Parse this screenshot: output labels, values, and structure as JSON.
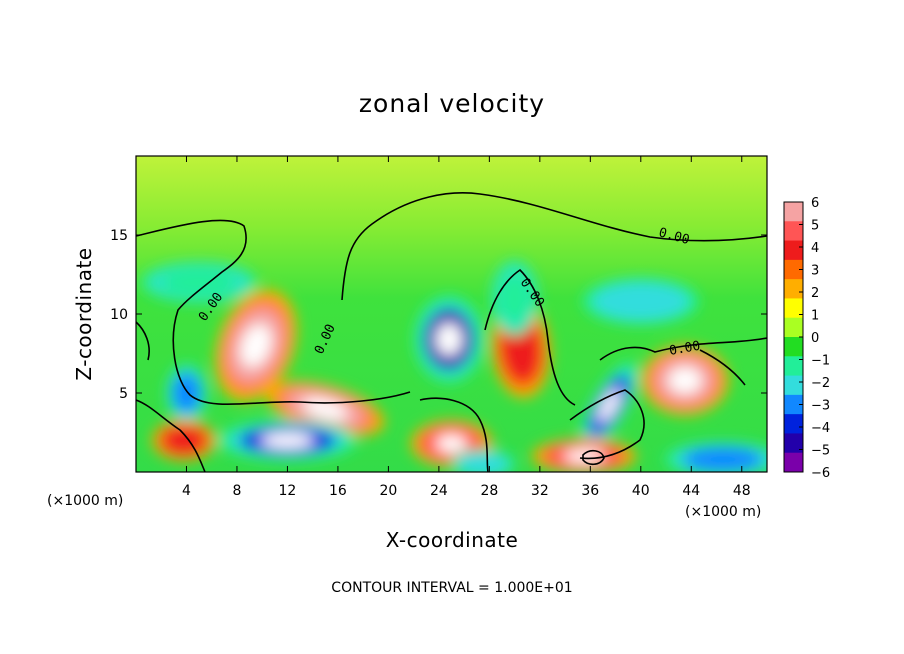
{
  "chart_data": {
    "type": "heatmap",
    "title": "zonal velocity",
    "xlabel": "X-coordinate",
    "ylabel": "Z-coordinate",
    "x_unit": "(×1000 m)",
    "xlim": [
      0,
      50
    ],
    "ylim": [
      0,
      20
    ],
    "xticks": [
      4,
      8,
      12,
      16,
      20,
      24,
      28,
      32,
      36,
      40,
      44,
      48
    ],
    "yticks": [
      5,
      10,
      15
    ],
    "footer": "CONTOUR INTERVAL = 1.000E+01",
    "contour_label": "0.00",
    "colorbar": {
      "ticks": [
        6,
        5,
        4,
        3,
        2,
        1,
        0,
        -1,
        -2,
        -3,
        -4,
        -5,
        -6
      ],
      "colors": [
        "#f5a3a3",
        "#ff5555",
        "#ee1c1c",
        "#ff6a00",
        "#ffae00",
        "#ffff00",
        "#aaff22",
        "#22dd22",
        "#22ee99",
        "#33dddd",
        "#1188ff",
        "#0022dd",
        "#2200aa",
        "#7a00aa"
      ]
    },
    "features": [
      {
        "x": 24.8,
        "z": 8.4,
        "value": -6
      },
      {
        "x": 9.5,
        "z": 8.0,
        "value": 6
      },
      {
        "x": 15.0,
        "z": 4.0,
        "value": 6
      },
      {
        "x": 30.5,
        "z": 7.8,
        "value": 4
      },
      {
        "x": 43.5,
        "z": 5.8,
        "value": 6
      },
      {
        "x": 37.5,
        "z": 4.2,
        "value": -5
      },
      {
        "x": 12.0,
        "z": 2.0,
        "value": -5
      },
      {
        "x": 25.0,
        "z": 1.8,
        "value": 5
      },
      {
        "x": 30.0,
        "z": 11.0,
        "value": -2
      },
      {
        "x": 40.0,
        "z": 10.8,
        "value": -3
      },
      {
        "x": 5.0,
        "z": 12.0,
        "value": -2
      },
      {
        "x": 4.0,
        "z": 5.0,
        "value": -4
      },
      {
        "x": 3.8,
        "z": 2.0,
        "value": 4
      },
      {
        "x": 35.5,
        "z": 1.0,
        "value": 5
      },
      {
        "x": 46.5,
        "z": 0.8,
        "value": -4
      },
      {
        "x": 27.5,
        "z": 0.5,
        "value": -3
      }
    ]
  }
}
